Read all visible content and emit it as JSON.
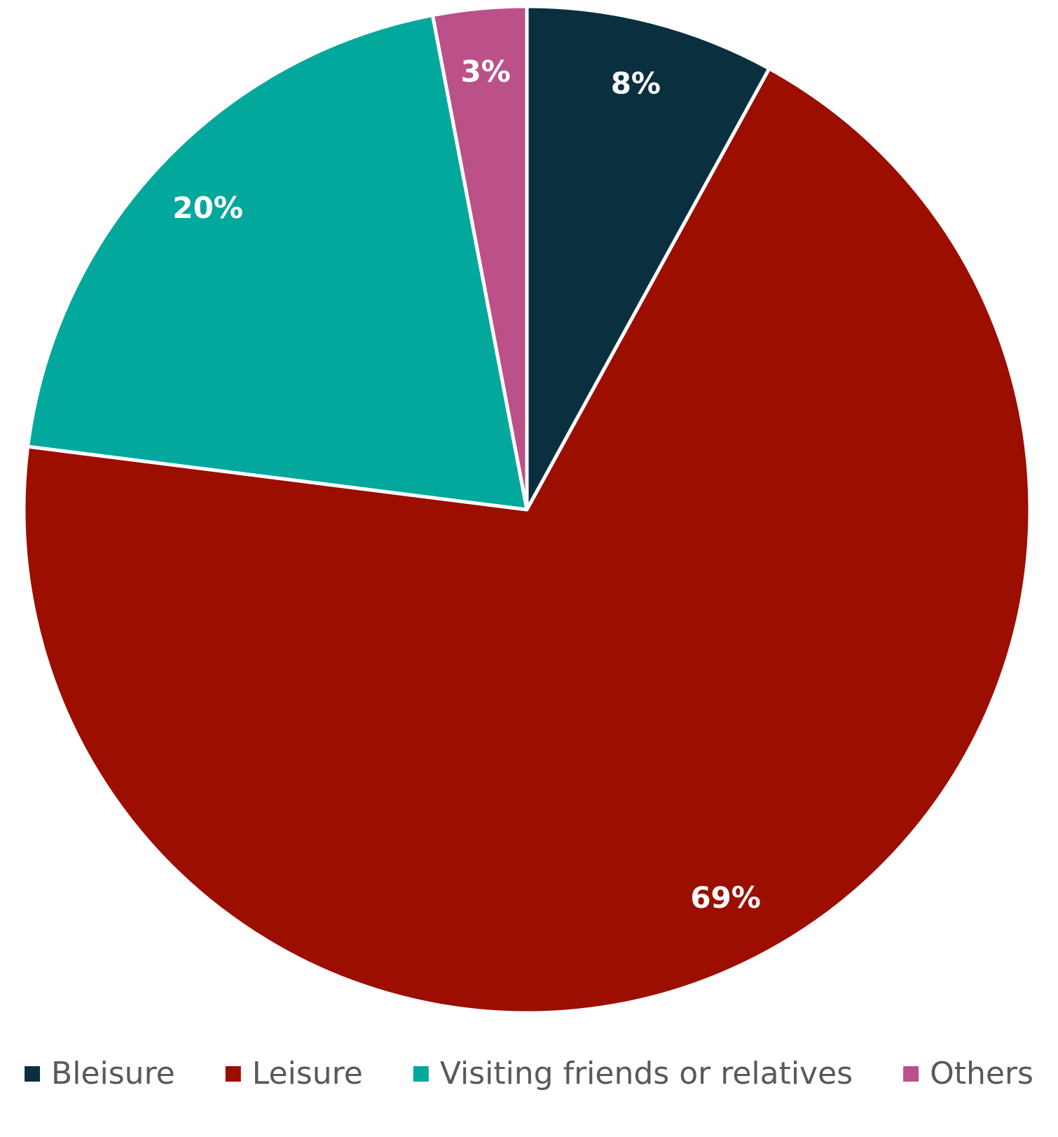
{
  "chart_data": {
    "type": "pie",
    "categories": [
      "Bleisure",
      "Leisure",
      "Visiting friends or relatives",
      "Others"
    ],
    "values": [
      8,
      69,
      20,
      3
    ],
    "value_labels": [
      "8%",
      "69%",
      "20%",
      "3%"
    ],
    "colors": [
      "#0a3040",
      "#9b0e00",
      "#03a89c",
      "#bc5088"
    ],
    "legend": "bottom"
  }
}
